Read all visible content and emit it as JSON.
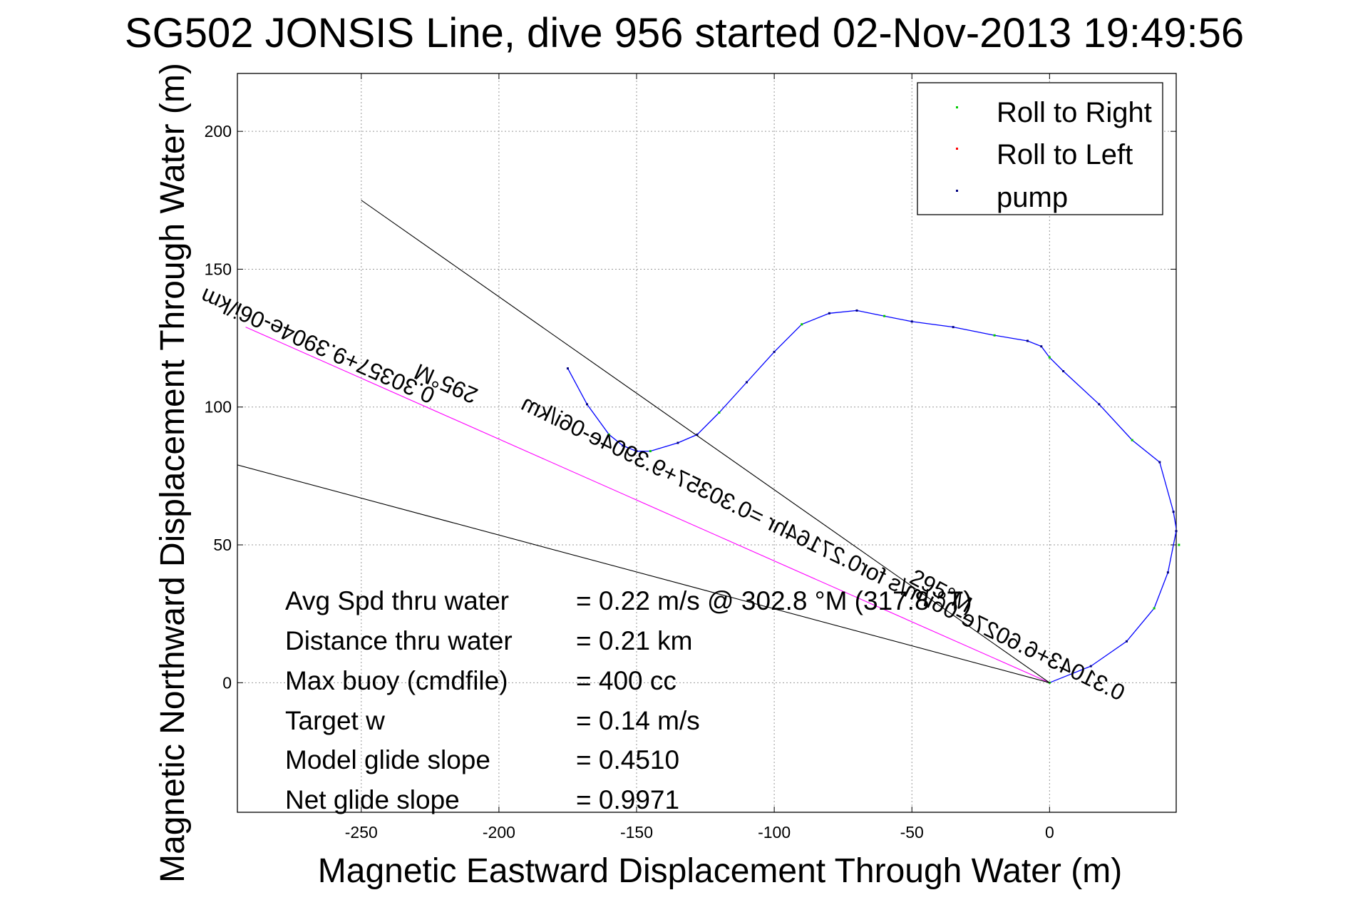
{
  "chart_data": {
    "type": "line",
    "title": "SG502 JONSIS Line, dive 956 started 02-Nov-2013 19:49:56",
    "xlabel": "Magnetic Eastward Displacement Through Water (m)",
    "ylabel": "Magnetic Northward Displacement Through Water (m)",
    "xlim": [
      -295,
      46
    ],
    "ylim": [
      -47,
      221
    ],
    "xticks": [
      -250,
      -200,
      -150,
      -100,
      -50,
      0
    ],
    "yticks": [
      0,
      50,
      100,
      150,
      200
    ],
    "grid": true,
    "legend": {
      "placement": "top-right",
      "entries": [
        {
          "label": "Roll to Right",
          "color": "#00cc00"
        },
        {
          "label": "Roll to Left",
          "color": "#ff0000"
        },
        {
          "label": "pump",
          "color": "#000080"
        }
      ]
    },
    "series": [
      {
        "color": "#0000ff",
        "x": [
          0,
          15,
          28,
          38,
          43,
          46,
          47,
          45,
          40,
          30,
          18,
          5,
          0,
          -3,
          -8,
          -20,
          -35,
          -50,
          -60,
          -70,
          -80,
          -90,
          -100,
          -110,
          -120,
          -128,
          -135,
          -145,
          -150,
          -155,
          -160,
          -168,
          -175
        ],
        "y": [
          0,
          6,
          15,
          27,
          40,
          55,
          50,
          62,
          80,
          88,
          101,
          113,
          118,
          122,
          124,
          126,
          129,
          131,
          133,
          135,
          134,
          130,
          120,
          109,
          98,
          90,
          87,
          84,
          84,
          86,
          90,
          101,
          114
        ]
      },
      {
        "color": "#ff00ff",
        "x": [
          0,
          -292
        ],
        "y": [
          0,
          129
        ]
      },
      {
        "color": "#000000",
        "x": [
          0,
          -250
        ],
        "y": [
          0,
          175
        ]
      },
      {
        "color": "#000000",
        "x": [
          0,
          -295
        ],
        "y": [
          0,
          79
        ]
      }
    ]
  },
  "annotations": {
    "heading_label": "295°M",
    "heading_label_2": "295°M",
    "current_label": "0.30357+9.3904e-06i/km",
    "current_label_2": "0.31043+6.6027e-06i/m/s for0.27164hr =0.30357+9.3904e-06i/km"
  },
  "stats": [
    {
      "label": "Avg Spd thru water",
      "value": "=  0.22 m/s @ 302.8 °M (317.8 °T)"
    },
    {
      "label": "Distance thru water",
      "value": "=  0.21 km"
    },
    {
      "label": "Max buoy (cmdfile)",
      "value": "= 400 cc"
    },
    {
      "label": "Target w",
      "value": "= 0.14 m/s"
    },
    {
      "label": "Model glide slope",
      "value": "= 0.4510"
    },
    {
      "label": "Net glide slope",
      "value": "= 0.9971"
    }
  ]
}
